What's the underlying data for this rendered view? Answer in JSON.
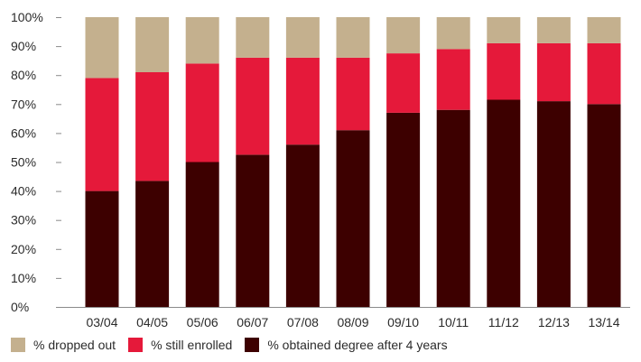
{
  "chart_data": {
    "type": "bar",
    "stacked": true,
    "categories": [
      "03/04",
      "04/05",
      "05/06",
      "06/07",
      "07/08",
      "08/09",
      "09/10",
      "10/11",
      "11/12",
      "12/13",
      "13/14"
    ],
    "series": [
      {
        "name": "% obtained degree after 4 years",
        "color": "#3d0000",
        "values": [
          40,
          43.5,
          50,
          52.5,
          56,
          61,
          67,
          68,
          71.5,
          71,
          70
        ]
      },
      {
        "name": "% still enrolled",
        "color": "#e5193a",
        "values": [
          39,
          37.5,
          34,
          33.5,
          30,
          25,
          20.5,
          21,
          19.5,
          20,
          21
        ]
      },
      {
        "name": "% dropped out",
        "color": "#c4b08e",
        "values": [
          21,
          19,
          16,
          14,
          14,
          14,
          12.5,
          11,
          9,
          9,
          9
        ]
      }
    ],
    "yticks": [
      "0%",
      "10%",
      "20%",
      "30%",
      "40%",
      "50%",
      "60%",
      "70%",
      "80%",
      "90%",
      "100%"
    ],
    "ylim": [
      0,
      100
    ],
    "legend_position": "bottom-left",
    "grid": false
  },
  "legend": [
    {
      "label": "% dropped out",
      "color": "#c4b08e"
    },
    {
      "label": "% still enrolled",
      "color": "#e5193a"
    },
    {
      "label": "% obtained degree after 4 years",
      "color": "#3d0000"
    }
  ]
}
